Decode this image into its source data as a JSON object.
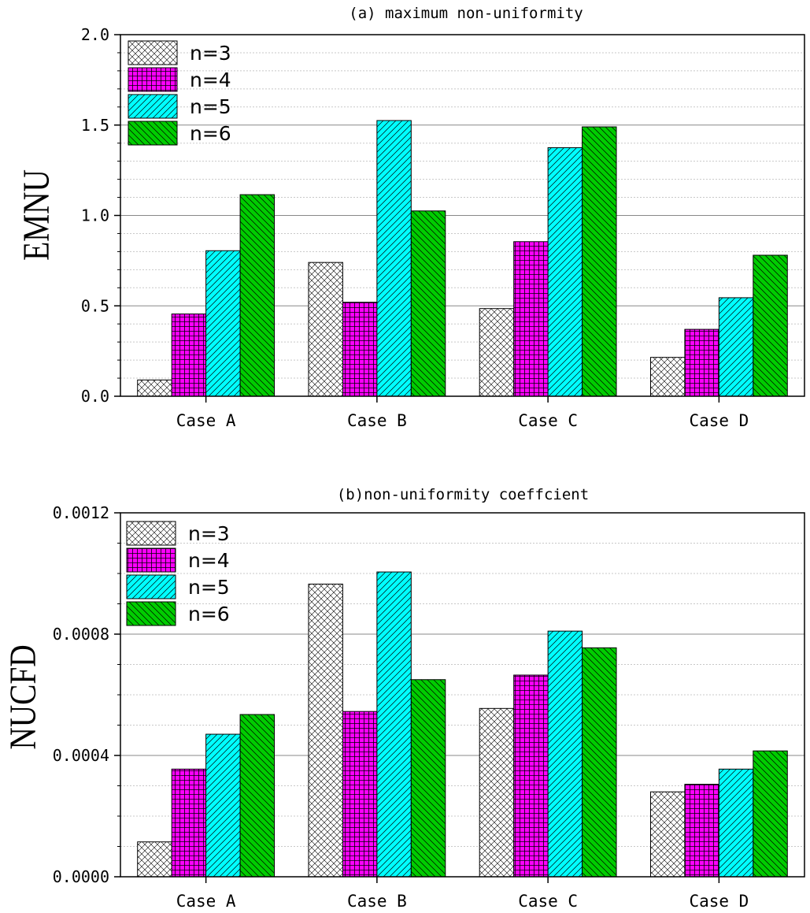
{
  "chart_data": [
    {
      "type": "bar",
      "title": "(a) maximum non-uniformity",
      "xlabel": "",
      "ylabel": "EMNU",
      "categories": [
        "Case A",
        "Case B",
        "Case C",
        "Case D"
      ],
      "ylim": [
        0,
        2.0
      ],
      "yticks": [
        "0.0",
        "0.5",
        "1.0",
        "1.5",
        "2.0"
      ],
      "grid": true,
      "legend_position": "top-left",
      "series": [
        {
          "name": "n=3",
          "values": [
            0.09,
            0.74,
            0.485,
            0.215
          ]
        },
        {
          "name": "n=4",
          "values": [
            0.455,
            0.52,
            0.855,
            0.37
          ]
        },
        {
          "name": "n=5",
          "values": [
            0.805,
            1.525,
            1.375,
            0.545
          ]
        },
        {
          "name": "n=6",
          "values": [
            1.115,
            1.025,
            1.49,
            0.78
          ]
        }
      ]
    },
    {
      "type": "bar",
      "title": "(b)non-uniformity coeffcient",
      "xlabel": "",
      "ylabel": "NUCFD",
      "categories": [
        "Case A",
        "Case B",
        "Case C",
        "Case D"
      ],
      "ylim": [
        0,
        0.0012
      ],
      "yticks": [
        "0.0000",
        "0.0004",
        "0.0008",
        "0.0012"
      ],
      "grid": true,
      "legend_position": "top-left",
      "series": [
        {
          "name": "n=3",
          "values": [
            0.000115,
            0.000965,
            0.000555,
            0.00028
          ]
        },
        {
          "name": "n=4",
          "values": [
            0.000355,
            0.000545,
            0.000665,
            0.000305
          ]
        },
        {
          "name": "n=5",
          "values": [
            0.00047,
            0.001005,
            0.00081,
            0.000355
          ]
        },
        {
          "name": "n=6",
          "values": [
            0.000535,
            0.00065,
            0.000755,
            0.000415
          ]
        }
      ]
    }
  ],
  "colors": {
    "n3": "#ffffff",
    "n4": "#ff00ff",
    "n5": "#00ffff",
    "n6": "#00cc00"
  }
}
